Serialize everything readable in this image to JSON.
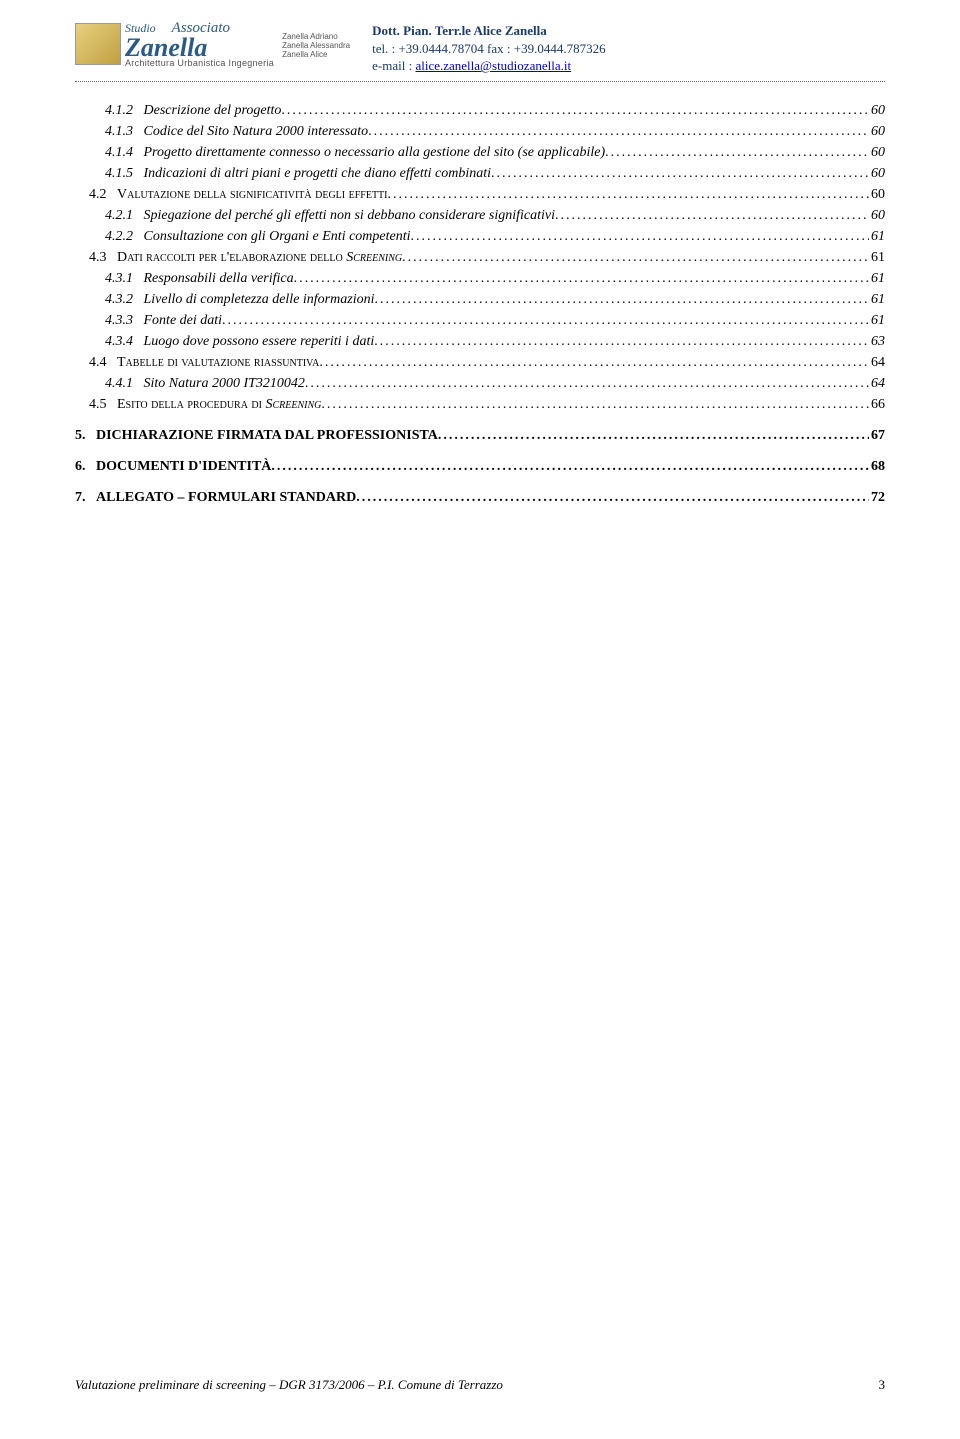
{
  "header": {
    "studio_top": "Studio",
    "studio_assoc": "Associato",
    "brand": "Zanella",
    "subline": "Architettura Urbanistica Ingegneria",
    "mini_names": [
      "Zanella Adriano",
      "Zanella Alessandra",
      "Zanella Alice"
    ],
    "contact_title": "Dott. Pian. Terr.le Alice Zanella",
    "tel_line": "tel. : +39.0444.78704  fax  : +39.0444.787326",
    "email_prefix": "e-mail : ",
    "email": "alice.zanella@studiozanella.it"
  },
  "colors": {
    "header_blue": "#1a3a6a",
    "link_blue": "#0000cc",
    "text": "#000000",
    "dotted": "#666666"
  },
  "toc": [
    {
      "num": "4.1.2",
      "label": "Descrizione del progetto",
      "page": "60",
      "style": "italic",
      "indent": 1
    },
    {
      "num": "4.1.3",
      "label": "Codice del Sito Natura 2000 interessato",
      "page": "60",
      "style": "italic",
      "indent": 1
    },
    {
      "num": "4.1.4",
      "label": "Progetto direttamente connesso o necessario alla gestione del sito (se applicabile)",
      "page": "60",
      "style": "italic",
      "indent": 1
    },
    {
      "num": "4.1.5",
      "label": "Indicazioni di altri piani e progetti che diano effetti combinati",
      "page": "60",
      "style": "italic",
      "indent": 1
    },
    {
      "num": "4.2",
      "label": "VALUTAZIONE DELLA SIGNIFICATIVITÀ DEGLI EFFETTI",
      "page": "60",
      "style": "smallcaps",
      "indent": 2
    },
    {
      "num": "4.2.1",
      "label": "Spiegazione del perché gli effetti non si debbano considerare significativi",
      "page": "60",
      "style": "italic",
      "indent": 1
    },
    {
      "num": "4.2.2",
      "label": "Consultazione con gli Organi e Enti competenti",
      "page": "61",
      "style": "italic",
      "indent": 1
    },
    {
      "num": "4.3",
      "label": "DATI RACCOLTI PER L'ELABORAZIONE DELLO SCREENING",
      "page": "61",
      "style": "smallcaps-italic-mix",
      "italic_word": "SCREENING",
      "indent": 2
    },
    {
      "num": "4.3.1",
      "label": "Responsabili della verifica",
      "page": "61",
      "style": "italic",
      "indent": 1
    },
    {
      "num": "4.3.2",
      "label": "Livello di completezza delle informazioni",
      "page": "61",
      "style": "italic",
      "indent": 1
    },
    {
      "num": "4.3.3",
      "label": "Fonte dei dati",
      "page": "61",
      "style": "italic",
      "indent": 1
    },
    {
      "num": "4.3.4",
      "label": "Luogo dove possono essere reperiti i dati",
      "page": "63",
      "style": "italic",
      "indent": 1
    },
    {
      "num": "4.4",
      "label": "TABELLE DI VALUTAZIONE RIASSUNTIVA",
      "page": "64",
      "style": "smallcaps",
      "indent": 2
    },
    {
      "num": "4.4.1",
      "label": "Sito Natura 2000 IT3210042",
      "page": "64",
      "style": "italic",
      "indent": 1
    },
    {
      "num": "4.5",
      "label": "ESITO DELLA PROCEDURA DI SCREENING",
      "page": "66",
      "style": "smallcaps-italic-mix",
      "italic_word": "SCREENING",
      "indent": 2
    }
  ],
  "toc_top": [
    {
      "num": "5.",
      "label": "DICHIARAZIONE FIRMATA DAL PROFESSIONISTA",
      "page": "67"
    },
    {
      "num": "6.",
      "label": "DOCUMENTI D'IDENTITÀ",
      "page": "68"
    },
    {
      "num": "7.",
      "label": "ALLEGATO – FORMULARI  STANDARD",
      "page": "72"
    }
  ],
  "footer": {
    "left": "Valutazione preliminare di screening – DGR  3173/2006 – P.I. Comune di Terrazzo",
    "page_num": "3"
  }
}
